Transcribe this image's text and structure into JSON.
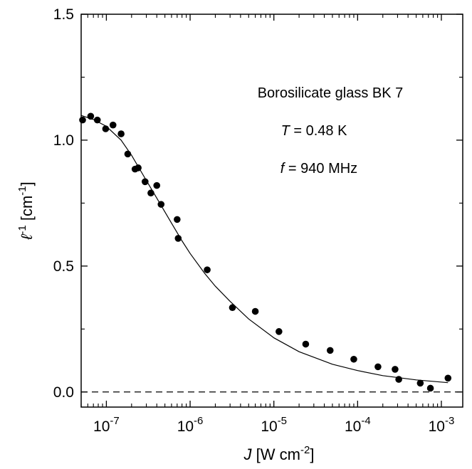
{
  "chart_data": {
    "type": "scatter",
    "xscale": "log",
    "xlim": [
      5e-08,
      0.0018
    ],
    "ylim": [
      -0.06,
      1.5
    ],
    "grid": false,
    "x_tick_values": [
      1e-07,
      1e-06,
      1e-05,
      0.0001,
      0.001
    ],
    "x_tick_labels": [
      {
        "base": "10",
        "exp": "-7"
      },
      {
        "base": "10",
        "exp": "-6"
      },
      {
        "base": "10",
        "exp": "-5"
      },
      {
        "base": "10",
        "exp": "-4"
      },
      {
        "base": "10",
        "exp": "-3"
      }
    ],
    "y_tick_values": [
      0.0,
      0.5,
      1.0,
      1.5
    ],
    "y_tick_labels": [
      "0.0",
      "0.5",
      "1.0",
      "1.5"
    ],
    "xlabel": {
      "var": "J",
      "text": " [W cm",
      "exp": "-2",
      "close": "]"
    },
    "ylabel": {
      "var": "ℓ",
      "exp": "-1",
      "text": " [cm",
      "exp2": "-1",
      "close": "]"
    },
    "annotations": {
      "line1": "Borosilicate glass BK 7",
      "line2_var": "T",
      "line2_text": " = 0.48 K",
      "line3_var": "f",
      "line3_text": " = 940 MHz"
    },
    "reference_line": {
      "y": 0.0,
      "style": "dashed"
    },
    "series": [
      {
        "kind": "points",
        "x": [
          5.2e-08,
          6.5e-08,
          7.8e-08,
          9.8e-08,
          1.2e-07,
          1.5e-07,
          1.8e-07,
          2.2e-07,
          2.4e-07,
          2.9e-07,
          3.4e-07,
          4e-07,
          4.5e-07,
          7e-07,
          7.2e-07,
          1.6e-06,
          3.2e-06,
          6e-06,
          1.15e-05,
          2.4e-05,
          4.7e-05,
          9e-05,
          0.000175,
          0.00028,
          0.00031,
          0.00056,
          0.00074,
          0.0012
        ],
        "y": [
          1.08,
          1.095,
          1.08,
          1.045,
          1.06,
          1.025,
          0.945,
          0.885,
          0.89,
          0.835,
          0.79,
          0.82,
          0.745,
          0.685,
          0.61,
          0.485,
          0.335,
          0.32,
          0.24,
          0.19,
          0.165,
          0.13,
          0.1,
          0.09,
          0.05,
          0.035,
          0.015,
          0.055
        ]
      },
      {
        "kind": "fit-line",
        "x": [
          5e-08,
          7e-08,
          1e-07,
          1.5e-07,
          2e-07,
          3e-07,
          4e-07,
          6e-07,
          8e-07,
          1e-06,
          1.5e-06,
          2e-06,
          3e-06,
          5e-06,
          1e-05,
          2e-05,
          5e-05,
          0.0001,
          0.0002,
          0.0005,
          0.0012
        ],
        "y": [
          1.098,
          1.082,
          1.055,
          1.0,
          0.94,
          0.84,
          0.77,
          0.67,
          0.6,
          0.55,
          0.47,
          0.42,
          0.36,
          0.29,
          0.215,
          0.16,
          0.11,
          0.085,
          0.065,
          0.048,
          0.037
        ]
      }
    ]
  }
}
